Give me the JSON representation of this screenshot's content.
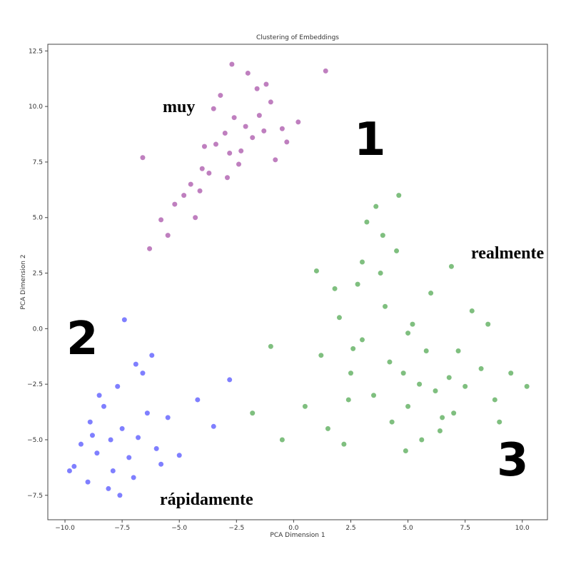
{
  "chart_data": {
    "type": "scatter",
    "title": "Clustering of Embeddings",
    "x_label": "PCA Dimension 1",
    "y_label": "PCA Dimension 2",
    "xlim": [
      -10.75,
      11.1
    ],
    "ylim": [
      -8.6,
      12.8
    ],
    "xticks": [
      {
        "value": -10,
        "label": "−10.0"
      },
      {
        "value": -7.5,
        "label": "−7.5"
      },
      {
        "value": -5,
        "label": "−5.0"
      },
      {
        "value": -2.5,
        "label": "−2.5"
      },
      {
        "value": 0,
        "label": "0.0"
      },
      {
        "value": 2.5,
        "label": "2.5"
      },
      {
        "value": 5,
        "label": "5.0"
      },
      {
        "value": 7.5,
        "label": "7.5"
      },
      {
        "value": 10,
        "label": "10.0"
      }
    ],
    "yticks": [
      {
        "value": -7.5,
        "label": "−7.5"
      },
      {
        "value": -5,
        "label": "−5.0"
      },
      {
        "value": -2.5,
        "label": "−2.5"
      },
      {
        "value": 0,
        "label": "0.0"
      },
      {
        "value": 2.5,
        "label": "2.5"
      },
      {
        "value": 5,
        "label": "5.0"
      },
      {
        "value": 7.5,
        "label": "7.5"
      },
      {
        "value": 10,
        "label": "10.0"
      },
      {
        "value": 12.5,
        "label": "12.5"
      }
    ],
    "annotations": [
      "muy",
      "realmente",
      "rápidamente",
      "1",
      "2",
      "3"
    ],
    "series": [
      {
        "color": "#800080",
        "x": [
          -3.4,
          -2.1,
          -1.5,
          -2.8,
          -4.0,
          -3.0,
          -2.3,
          -1.0,
          -0.5,
          -4.5,
          -5.2,
          -3.7,
          -2.6,
          -1.8,
          -3.2,
          -4.8,
          -5.8,
          -6.3,
          -2.0,
          -1.2,
          0.2,
          -0.8,
          -3.9,
          -4.3,
          -2.9,
          -1.6,
          -5.5,
          -6.6,
          -2.4,
          -0.3,
          1.4,
          -3.5,
          -4.1,
          -1.3,
          -2.7
        ],
        "y": [
          8.3,
          9.1,
          9.6,
          7.9,
          7.2,
          8.8,
          8.0,
          10.2,
          9.0,
          6.5,
          5.6,
          7.0,
          9.5,
          8.6,
          10.5,
          6.0,
          4.9,
          3.6,
          11.5,
          11.0,
          9.3,
          7.6,
          8.2,
          5.0,
          6.8,
          10.8,
          4.2,
          7.7,
          7.4,
          8.4,
          11.6,
          9.9,
          6.2,
          8.9,
          11.9
        ]
      },
      {
        "color": "#0000ff",
        "x": [
          -8.0,
          -7.5,
          -8.6,
          -7.2,
          -8.9,
          -6.8,
          -9.3,
          -7.9,
          -6.4,
          -8.3,
          -7.0,
          -9.6,
          -8.1,
          -6.0,
          -5.5,
          -7.7,
          -9.0,
          -8.5,
          -6.6,
          -5.0,
          -4.2,
          -3.5,
          -6.2,
          -7.4,
          -9.8,
          -8.8,
          -5.8,
          -2.8,
          -7.6,
          -6.9
        ],
        "y": [
          -5.0,
          -4.5,
          -5.6,
          -5.8,
          -4.2,
          -4.9,
          -5.2,
          -6.4,
          -3.8,
          -3.5,
          -6.7,
          -6.2,
          -7.2,
          -5.4,
          -4.0,
          -2.6,
          -6.9,
          -3.0,
          -2.0,
          -5.7,
          -3.2,
          -4.4,
          -1.2,
          0.4,
          -6.4,
          -4.8,
          -6.1,
          -2.3,
          -7.5,
          -1.6
        ]
      },
      {
        "color": "#008000",
        "x": [
          5.5,
          6.2,
          4.8,
          5.0,
          6.8,
          4.2,
          7.5,
          3.5,
          5.8,
          6.5,
          3.0,
          2.5,
          4.0,
          7.0,
          8.2,
          2.0,
          1.2,
          3.8,
          4.5,
          3.2,
          2.8,
          5.2,
          6.0,
          8.8,
          9.5,
          0.5,
          1.5,
          -1.0,
          -1.8,
          2.2,
          3.6,
          4.6,
          7.8,
          5.6,
          6.4,
          4.3,
          3.0,
          2.4,
          1.8,
          5.0,
          7.2,
          9.0,
          10.2,
          -0.5,
          1.0,
          3.9,
          6.9,
          4.9,
          2.6,
          8.5
        ],
        "y": [
          -2.5,
          -2.8,
          -2.0,
          -3.5,
          -2.2,
          -1.5,
          -2.6,
          -3.0,
          -1.0,
          -4.0,
          -0.5,
          -2.0,
          1.0,
          -3.8,
          -1.8,
          0.5,
          -1.2,
          2.5,
          3.5,
          4.8,
          2.0,
          0.2,
          1.6,
          -3.2,
          -2.0,
          -3.5,
          -4.5,
          -0.8,
          -3.8,
          -5.2,
          5.5,
          6.0,
          0.8,
          -5.0,
          -4.6,
          -4.2,
          3.0,
          -3.2,
          1.8,
          -0.2,
          -1.0,
          -4.2,
          -2.6,
          -5.0,
          2.6,
          4.2,
          2.8,
          -5.5,
          -0.9,
          0.2
        ]
      }
    ]
  }
}
